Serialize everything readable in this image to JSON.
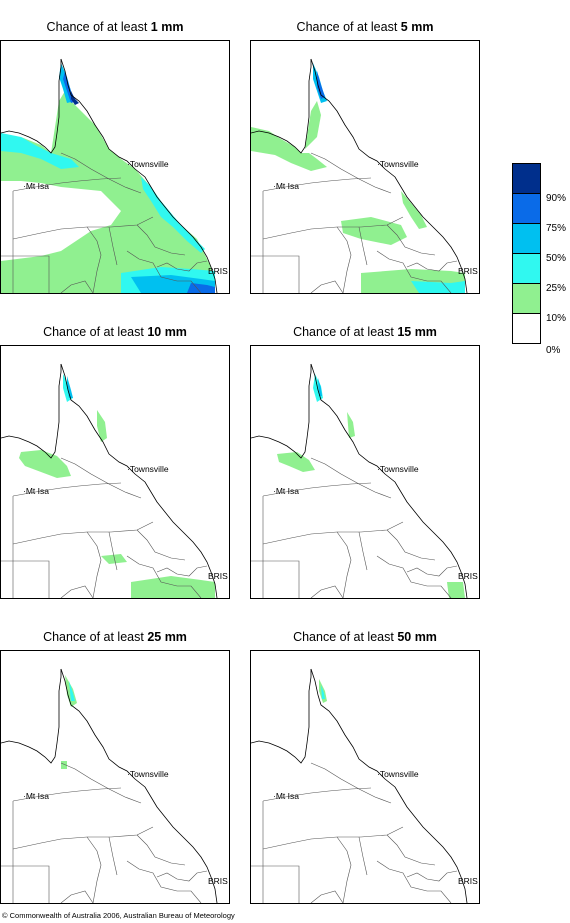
{
  "panels": [
    {
      "title_prefix": "Chance of at least ",
      "amount": "1 mm"
    },
    {
      "title_prefix": "Chance of at least ",
      "amount": "5 mm"
    },
    {
      "title_prefix": "Chance of at least ",
      "amount": "10 mm"
    },
    {
      "title_prefix": "Chance of at least ",
      "amount": "15 mm"
    },
    {
      "title_prefix": "Chance of at least ",
      "amount": "25 mm"
    },
    {
      "title_prefix": "Chance of at least ",
      "amount": "50 mm"
    }
  ],
  "places": {
    "townsville": "Townsville",
    "mt_isa": "Mt Isa",
    "brisbane": "BRIS"
  },
  "legend": {
    "labels": [
      "90%",
      "75%",
      "50%",
      "25%",
      "10%",
      "0%"
    ],
    "colors": [
      "#002f8c",
      "#0a6be8",
      "#00c0f0",
      "#30f8f0",
      "#90f090",
      "#ffffff"
    ]
  },
  "footer": "© Commonwealth of Australia 2006, Australian Bureau of Meteorology"
}
